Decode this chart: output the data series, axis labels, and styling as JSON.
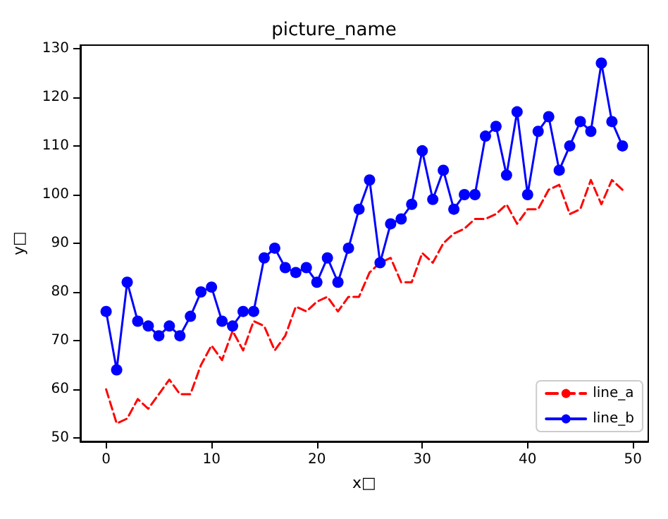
{
  "chart_data": {
    "type": "line",
    "title": "picture_name",
    "xlabel": "x□",
    "ylabel": "y□",
    "x": [
      0,
      1,
      2,
      3,
      4,
      5,
      6,
      7,
      8,
      9,
      10,
      11,
      12,
      13,
      14,
      15,
      16,
      17,
      18,
      19,
      20,
      21,
      22,
      23,
      24,
      25,
      26,
      27,
      28,
      29,
      30,
      31,
      32,
      33,
      34,
      35,
      36,
      37,
      38,
      39,
      40,
      41,
      42,
      43,
      44,
      45,
      46,
      47,
      48,
      49
    ],
    "series": [
      {
        "name": "line_a",
        "color": "#ff0000",
        "line_style": "dashed",
        "marker": "none",
        "values": [
          60,
          53,
          54,
          58,
          56,
          59,
          62,
          59,
          59,
          65,
          69,
          66,
          72,
          68,
          74,
          73,
          68,
          71,
          77,
          76,
          78,
          79,
          76,
          79,
          79,
          84,
          86,
          87,
          82,
          82,
          88,
          86,
          90,
          92,
          93,
          95,
          95,
          96,
          98,
          94,
          97,
          97,
          101,
          102,
          96,
          97,
          103,
          98,
          103,
          101
        ]
      },
      {
        "name": "line_b",
        "color": "#0000ff",
        "line_style": "solid",
        "marker": "circle",
        "values": [
          76,
          64,
          82,
          74,
          73,
          71,
          73,
          71,
          75,
          80,
          81,
          74,
          73,
          76,
          76,
          87,
          89,
          85,
          84,
          85,
          82,
          87,
          82,
          89,
          97,
          103,
          86,
          94,
          95,
          98,
          109,
          99,
          105,
          97,
          100,
          100,
          112,
          114,
          104,
          117,
          100,
          113,
          116,
          105,
          110,
          115,
          113,
          127,
          115,
          110
        ]
      }
    ],
    "xlim": [
      -2.45,
      51.45
    ],
    "ylim": [
      49.3,
      130.7
    ],
    "xticks": [
      0,
      10,
      20,
      30,
      40,
      50
    ],
    "yticks": [
      50,
      60,
      70,
      80,
      90,
      100,
      110,
      120,
      130
    ],
    "grid": false,
    "legend": "bottom right"
  }
}
